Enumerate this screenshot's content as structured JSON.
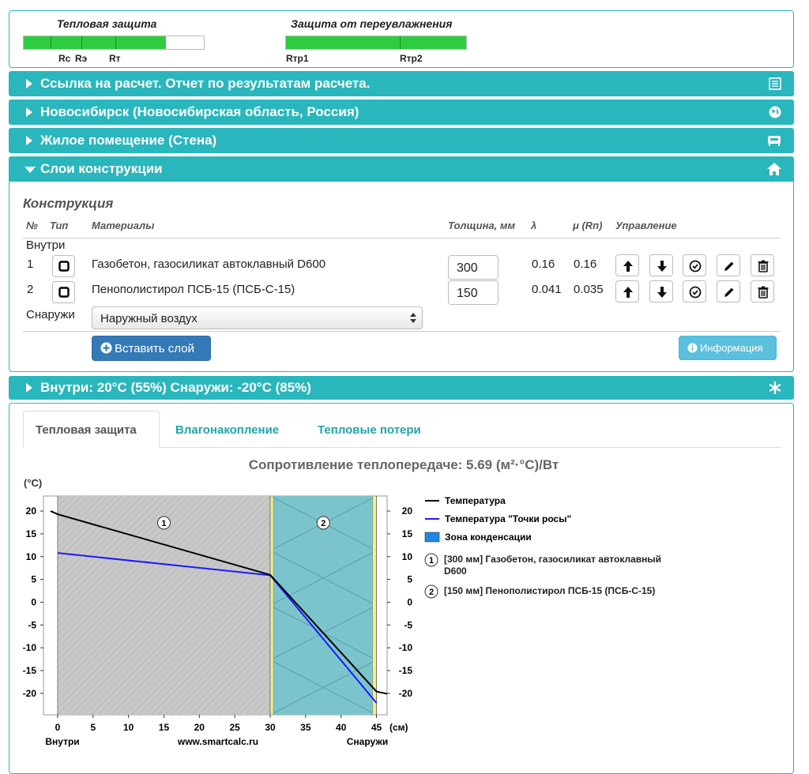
{
  "indicators": [
    {
      "title": "Тепловая защита",
      "marks": [
        "Rc",
        "Rэ",
        "Rт"
      ]
    },
    {
      "title": "Защита от переувлажнения",
      "marks": [
        "Rтр1",
        "Rтр2"
      ]
    }
  ],
  "panels": [
    "Ссылка на расчет. Отчет по результатам расчета.",
    "Новосибирск (Новосибирская область, Россия)",
    "Жилое помещение (Стена)",
    "Слои конструкции"
  ],
  "construction": {
    "title": "Конструкция",
    "columns": [
      "№",
      "Тип",
      "Материалы",
      "Толщина, мм",
      "λ",
      "μ (Rп)",
      "Управление"
    ],
    "inside": "Внутри",
    "rows": [
      {
        "no": 1,
        "material": "Газобетон, газосиликат автоклавный D600",
        "thickness": 300,
        "lambda": 0.16,
        "mu": 0.16
      },
      {
        "no": 2,
        "material": "Пенополистирол ПСБ-15 (ПСБ-С-15)",
        "thickness": 150,
        "lambda": 0.041,
        "mu": 0.035
      }
    ],
    "outside": "Снаружи",
    "outside_select": "Наружный воздух",
    "insert_button": "Вставить слой",
    "info_button": "Информация"
  },
  "conditions": "Внутри: 20°C (55%) Снаружи: -20°C (85%)",
  "tabs": [
    "Тепловая защита",
    "Влагонакопление",
    "Тепловые потери"
  ],
  "chart_data": {
    "type": "line",
    "title": "Сопротивление теплопередаче: 5.69 (м²·°С)/Вт",
    "y_unit": "(°C)",
    "x_unit": "(см)",
    "left_label": "Внутри",
    "center_label": "www.smartcalc.ru",
    "right_label": "Снаружи",
    "x": [
      -1,
      0,
      30,
      45,
      46.5
    ],
    "series": [
      {
        "name": "Температура",
        "color": "#000000",
        "values": [
          20,
          19.3,
          6.0,
          -19.6,
          -20.1
        ]
      },
      {
        "name": "Температура \"Точки росы\"",
        "color": "#1a1aff",
        "values": [
          null,
          10.8,
          5.9,
          -22.1,
          null
        ]
      }
    ],
    "condensation_zone": {
      "name": "Зона конденсации",
      "color": "#1e88e5"
    },
    "layers": [
      {
        "number": "1",
        "label": "[300 мм] Газобетон, газосиликат автоклавный D600",
        "from": 0,
        "to": 30
      },
      {
        "number": "2",
        "label": "[150 мм] Пенополистирол ПСБ-15 (ПСБ-С-15)",
        "from": 30,
        "to": 45
      }
    ],
    "xlim": [
      -2,
      46.5
    ],
    "ylim": [
      -24.7,
      23.3
    ],
    "xticks": [
      0,
      5,
      10,
      15,
      20,
      25,
      30,
      35,
      40,
      45
    ],
    "yticks": [
      -20,
      -15,
      -10,
      -5,
      0,
      5,
      10,
      15,
      20
    ]
  }
}
